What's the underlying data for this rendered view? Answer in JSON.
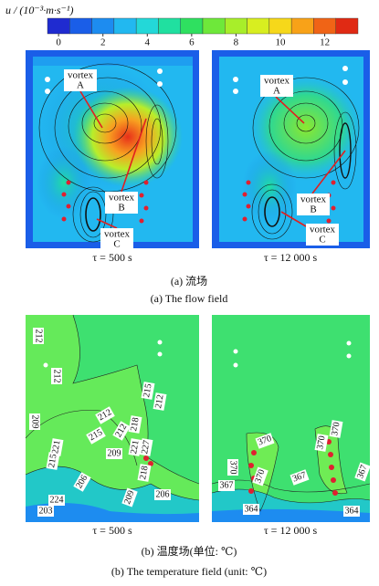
{
  "colorbar": {
    "label": "u / (10⁻³·m·s⁻¹)",
    "colors": [
      "#1f2bd0",
      "#1a5ee8",
      "#1d8cf0",
      "#22b8f0",
      "#23d8d8",
      "#20e0a0",
      "#2fe060",
      "#6ee83a",
      "#a8ee2a",
      "#d8ee20",
      "#f6d81a",
      "#f8a218",
      "#f06416",
      "#e02a14"
    ],
    "ticks": [
      0,
      2,
      4,
      6,
      8,
      10,
      12
    ]
  },
  "flow_panels": [
    {
      "caption": "τ = 500 s",
      "vortices": [
        {
          "word": "vortex",
          "letter": "A"
        },
        {
          "word": "vortex",
          "letter": "B"
        },
        {
          "word": "vortex",
          "letter": "C"
        }
      ]
    },
    {
      "caption": "τ = 12 000 s",
      "vortices": [
        {
          "word": "vortex",
          "letter": "A"
        },
        {
          "word": "vortex",
          "letter": "B"
        },
        {
          "word": "vortex",
          "letter": "C"
        }
      ]
    }
  ],
  "flow_caption_cn": "(a) 流场",
  "flow_caption_en": "(a) The flow field",
  "temperature_panels": [
    {
      "caption": "τ = 500 s",
      "contour_labels": [
        212,
        212,
        209,
        215,
        212,
        212,
        218,
        215,
        212,
        221,
        227,
        209,
        221,
        215,
        218,
        206,
        209,
        224,
        203,
        206
      ]
    },
    {
      "caption": "τ = 12 000 s",
      "contour_labels": [
        370,
        370,
        370,
        367,
        364,
        370,
        370,
        367,
        367,
        364
      ]
    }
  ],
  "temperature_caption_cn": "(b) 温度场(单位: ℃)",
  "temperature_caption_en": "(b) The temperature field (unit: ℃)"
}
